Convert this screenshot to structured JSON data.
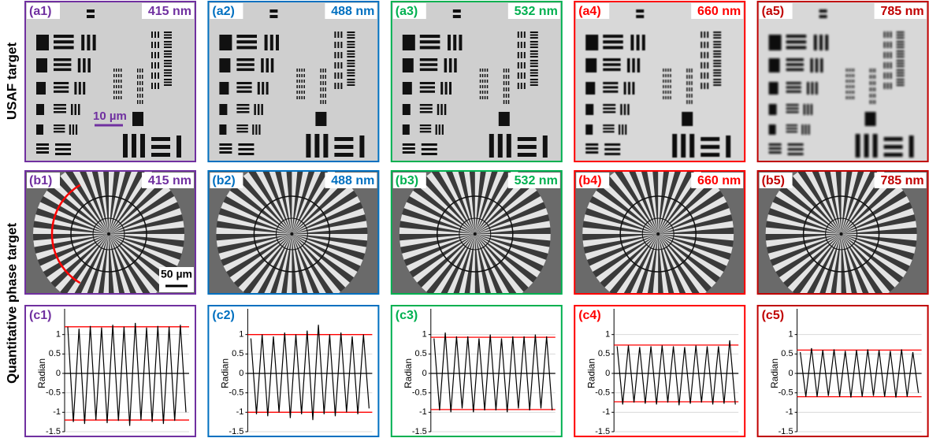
{
  "row_labels": [
    "USAF target",
    "Quantitative phase target"
  ],
  "usaf_panels": [
    {
      "label": "(a1)",
      "wavelength": "415 nm",
      "color": "#7030a0"
    },
    {
      "label": "(a2)",
      "wavelength": "488 nm",
      "color": "#0070c0"
    },
    {
      "label": "(a3)",
      "wavelength": "532 nm",
      "color": "#00b050"
    },
    {
      "label": "(a4)",
      "wavelength": "660 nm",
      "color": "#ff0000"
    },
    {
      "label": "(a5)",
      "wavelength": "785 nm",
      "color": "#c00000"
    }
  ],
  "usaf_scale_bar": "10 µm",
  "phase_panels": [
    {
      "label": "(b1)",
      "wavelength": "415 nm",
      "color": "#7030a0"
    },
    {
      "label": "(b2)",
      "wavelength": "488 nm",
      "color": "#0070c0"
    },
    {
      "label": "(b3)",
      "wavelength": "532 nm",
      "color": "#00b050"
    },
    {
      "label": "(b4)",
      "wavelength": "660 nm",
      "color": "#ff0000"
    },
    {
      "label": "(b5)",
      "wavelength": "785 nm",
      "color": "#c00000"
    }
  ],
  "phase_scale_bar": "50 µm",
  "chart_data": [
    {
      "type": "line",
      "label": "(c1)",
      "color": "#7030a0",
      "line_color": "#000000",
      "ylabel": "Radian",
      "ylim": [
        -1.5,
        1.5
      ],
      "yticks": [
        -1.5,
        -1,
        -0.5,
        0,
        0.5,
        1
      ],
      "grid": true,
      "reference_lines": [
        1.2,
        -1.2
      ],
      "reference_color": "#ff0000",
      "values": [
        1.2,
        -1.25,
        1.15,
        -1.3,
        1.22,
        -1.2,
        1.18,
        -1.28,
        1.25,
        -1.22,
        1.2,
        -1.35,
        1.3,
        -1.2,
        1.18,
        -1.25,
        1.22,
        -1.3,
        1.2,
        -1.22,
        1.25,
        -1.0
      ]
    },
    {
      "type": "line",
      "label": "(c2)",
      "color": "#0070c0",
      "line_color": "#000000",
      "ylabel": "Radian",
      "ylim": [
        -1.5,
        1.5
      ],
      "yticks": [
        -1.5,
        -1,
        -0.5,
        0,
        0.5,
        1
      ],
      "grid": true,
      "reference_lines": [
        1,
        -1
      ],
      "reference_color": "#ff0000",
      "values": [
        0.9,
        -1.05,
        1.0,
        -1.1,
        0.95,
        -1.0,
        1.05,
        -1.15,
        1.0,
        -1.05,
        1.1,
        -1.2,
        1.25,
        -1.05,
        1.0,
        -1.1,
        1.05,
        -1.0,
        0.95,
        -1.05,
        1.0,
        -0.9
      ]
    },
    {
      "type": "line",
      "label": "(c3)",
      "color": "#00b050",
      "line_color": "#000000",
      "ylabel": "Radian",
      "ylim": [
        -1.5,
        1.5
      ],
      "yticks": [
        -1.5,
        -1,
        -0.5,
        0,
        0.5,
        1
      ],
      "grid": true,
      "reference_lines": [
        0.93,
        -0.93
      ],
      "reference_color": "#ff0000",
      "values": [
        0.9,
        -0.95,
        1.05,
        -1.0,
        0.95,
        -0.9,
        0.95,
        -1.0,
        0.9,
        -0.95,
        1.0,
        -0.95,
        0.9,
        -1.0,
        0.95,
        -0.9,
        0.95,
        -0.95,
        1.0,
        -0.9,
        0.95,
        -0.95
      ]
    },
    {
      "type": "line",
      "label": "(c4)",
      "color": "#ff0000",
      "line_color": "#000000",
      "ylabel": "Radian",
      "ylim": [
        -1.5,
        1.5
      ],
      "yticks": [
        -1.5,
        -1,
        -0.5,
        0,
        0.5,
        1
      ],
      "grid": true,
      "reference_lines": [
        0.73,
        -0.73
      ],
      "reference_color": "#ff0000",
      "values": [
        0.7,
        -0.8,
        0.72,
        -0.75,
        0.68,
        -0.78,
        0.7,
        -0.8,
        0.72,
        -0.75,
        0.7,
        -0.82,
        0.68,
        -0.78,
        0.72,
        -0.75,
        0.7,
        -0.8,
        0.7,
        -0.78,
        0.85,
        -0.8
      ]
    },
    {
      "type": "line",
      "label": "(c5)",
      "color": "#c00000",
      "line_color": "#000000",
      "ylabel": "Radian",
      "ylim": [
        -1.5,
        1.5
      ],
      "yticks": [
        -1.5,
        -1,
        -0.5,
        0,
        0.5,
        1
      ],
      "grid": true,
      "reference_lines": [
        0.6,
        -0.6
      ],
      "reference_color": "#ff0000",
      "values": [
        0.55,
        -0.6,
        0.65,
        -0.6,
        0.6,
        -0.58,
        0.62,
        -0.6,
        0.58,
        -0.62,
        0.6,
        -0.6,
        0.62,
        -0.58,
        0.6,
        -0.6,
        0.58,
        -0.62,
        0.62,
        -0.6,
        0.55,
        -0.5
      ]
    }
  ]
}
